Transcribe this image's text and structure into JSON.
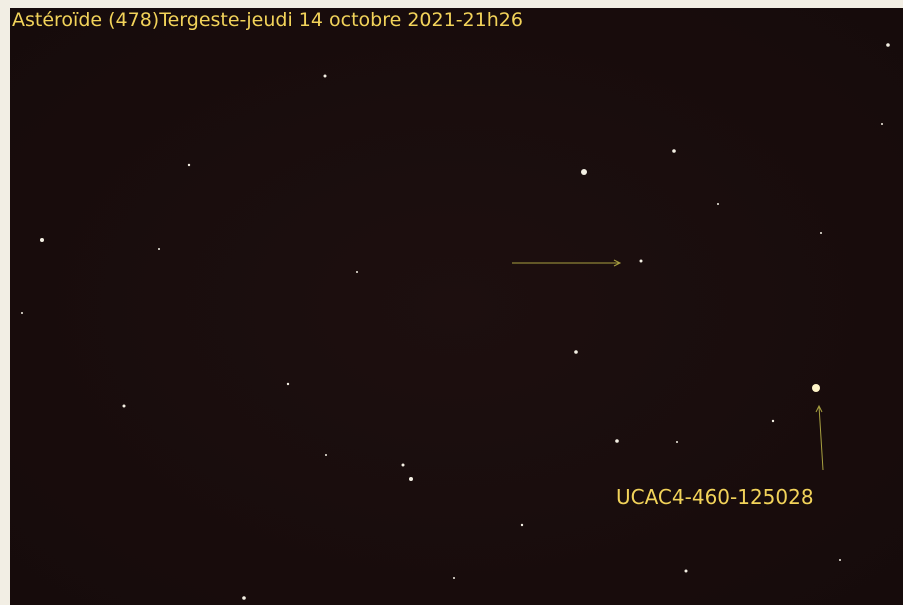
{
  "title": "Astéroïde (478)Tergeste-jeudi 14 octobre 2021-21h26",
  "annotations": {
    "star_label": "UCAC4-460-125028"
  }
}
